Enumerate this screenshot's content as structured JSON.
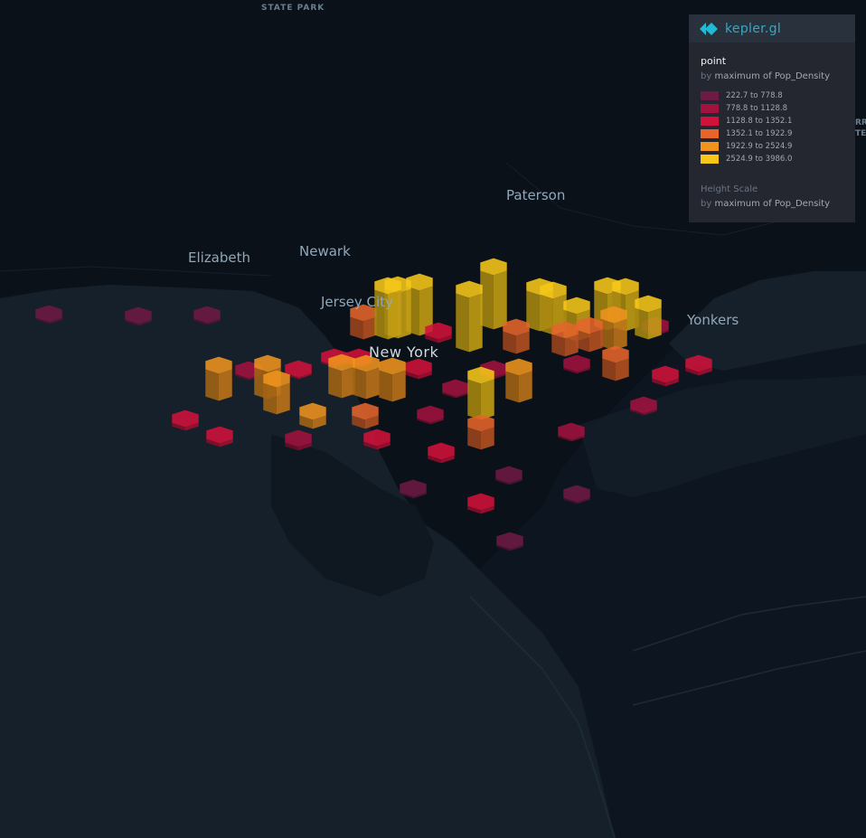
{
  "map": {
    "park_label": "STATE PARK",
    "edge_label_top": "RR",
    "edge_label_bottom": "TE",
    "cities": {
      "paterson": "Paterson",
      "elizabeth": "Elizabeth",
      "newark": "Newark",
      "jersey_city": "Jersey City",
      "new_york": "New York",
      "yonkers": "Yonkers"
    }
  },
  "legend": {
    "brand": "kepler.gl",
    "layer_name": "point",
    "color_by_prefix": "by",
    "color_by_field": "maximum of Pop_Density",
    "items": [
      {
        "label": "222.7 to 778.8",
        "color": "#6d1a44"
      },
      {
        "label": "778.8 to 1128.8",
        "color": "#a1123f"
      },
      {
        "label": "1128.8 to 1352.1",
        "color": "#d1123b"
      },
      {
        "label": "1352.1 to 1922.9",
        "color": "#e5652b"
      },
      {
        "label": "1922.9 to 2524.9",
        "color": "#f0941e"
      },
      {
        "label": "2524.9 to 3986.0",
        "color": "#f7c819"
      }
    ],
    "height_title": "Height Scale",
    "height_by_prefix": "by",
    "height_by_field": "maximum of Pop_Density"
  }
}
